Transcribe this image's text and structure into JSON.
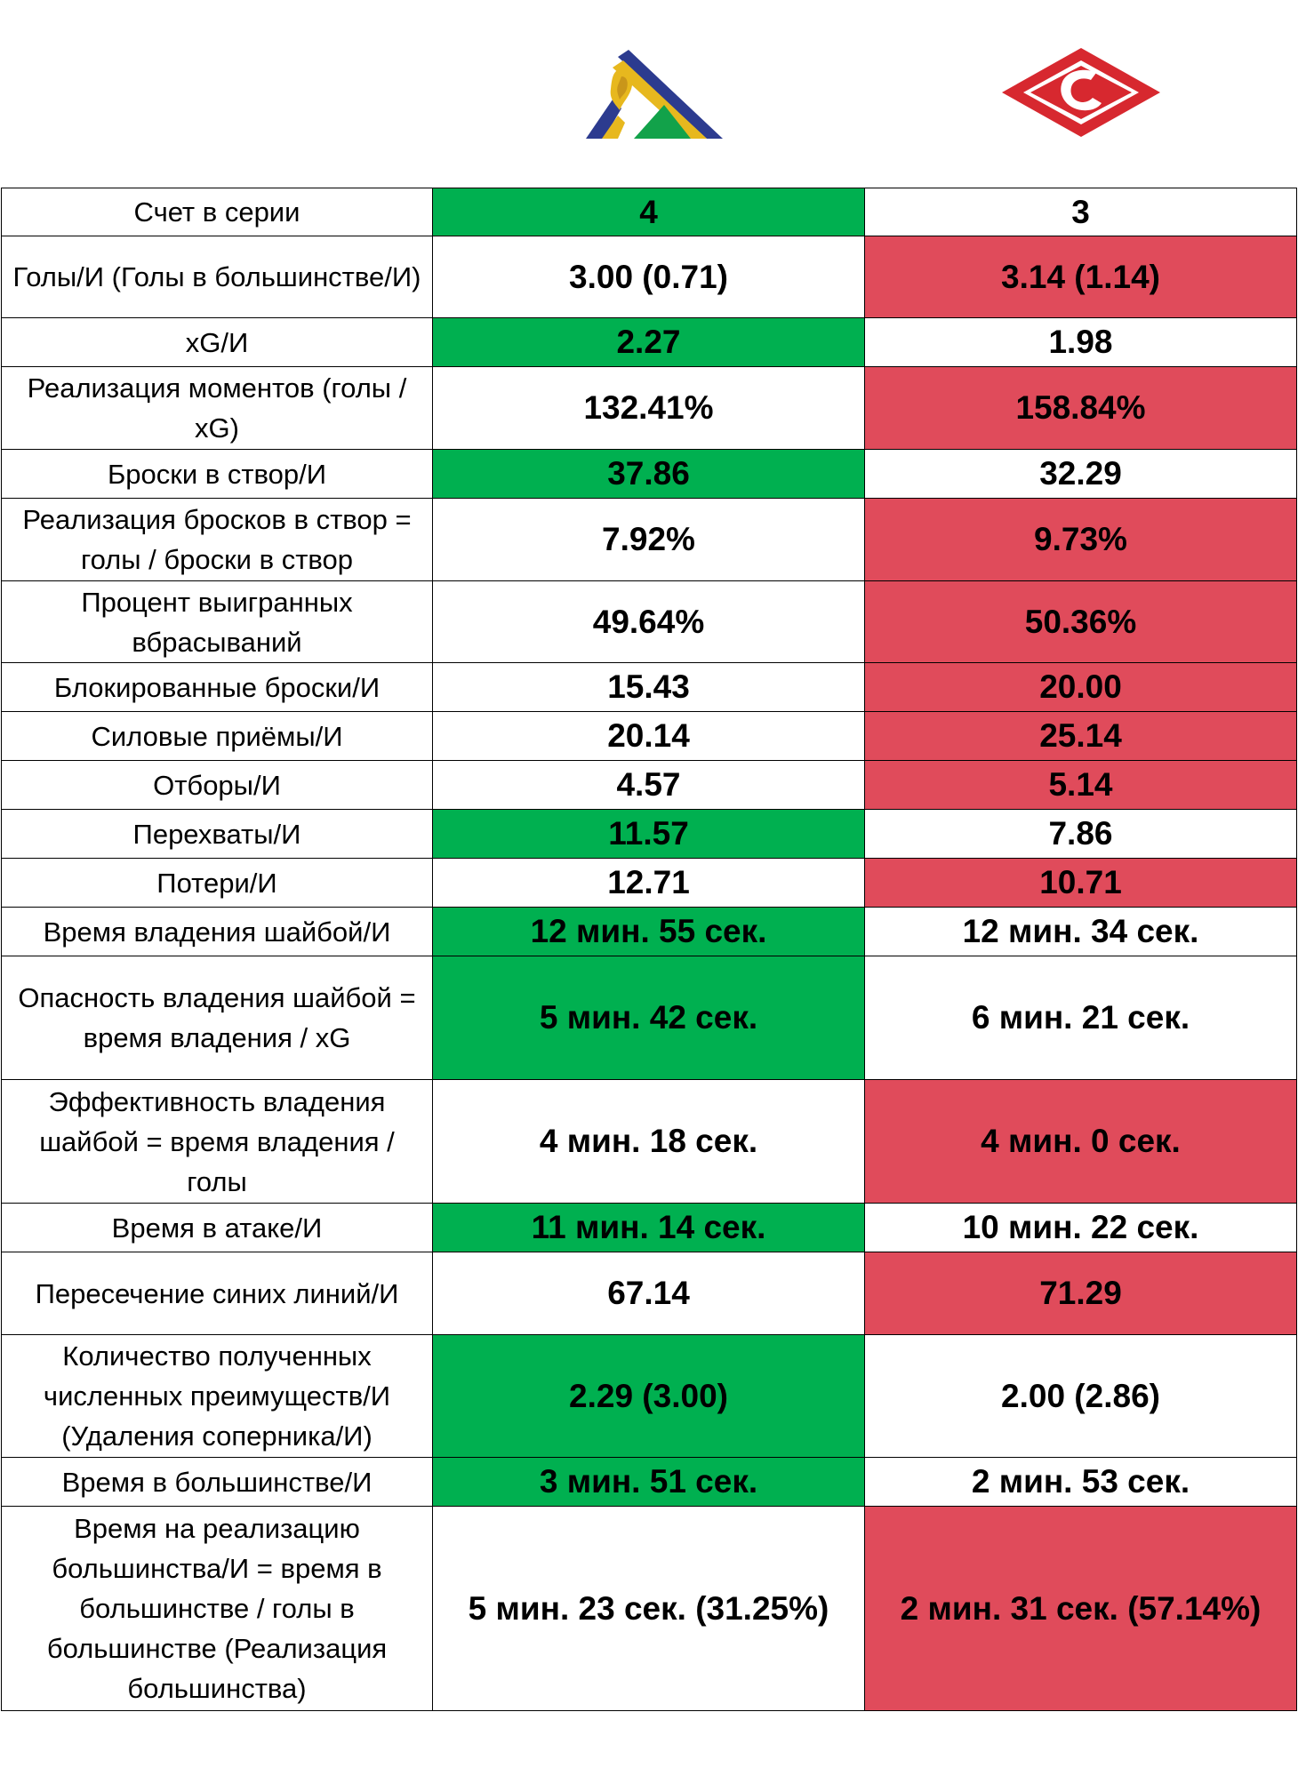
{
  "colors": {
    "better": "#00b050",
    "worse": "#e04b5b",
    "neutral": "#ffffff"
  },
  "teams": [
    {
      "logo": "salavat-yulaev-logo"
    },
    {
      "logo": "spartak-logo"
    }
  ],
  "rows": [
    {
      "label": "Счет в серии",
      "home": "4",
      "away": "3",
      "home_color": "green",
      "away_color": "white",
      "h": 54
    },
    {
      "label": "Голы/И (Голы в большинстве/И)",
      "home": "3.00 (0.71)",
      "away": "3.14 (1.14)",
      "home_color": "white",
      "away_color": "red",
      "h": 92
    },
    {
      "label": "xG/И",
      "home": "2.27",
      "away": "1.98",
      "home_color": "green",
      "away_color": "white",
      "h": 55
    },
    {
      "label": "Реализация моментов (голы / xG)",
      "home": "132.41%",
      "away": "158.84%",
      "home_color": "white",
      "away_color": "red",
      "h": 93
    },
    {
      "label": "Броски в створ/И",
      "home": "37.86",
      "away": "32.29",
      "home_color": "green",
      "away_color": "white",
      "h": 55
    },
    {
      "label": "Реализация бросков в створ = голы / броски в створ",
      "home": "7.92%",
      "away": "9.73%",
      "home_color": "white",
      "away_color": "red",
      "h": 93
    },
    {
      "label": "Процент выигранных вбрасываний",
      "home": "49.64%",
      "away": "50.36%",
      "home_color": "white",
      "away_color": "red",
      "h": 92
    },
    {
      "label": "Блокированные броски/И",
      "home": "15.43",
      "away": "20.00",
      "home_color": "white",
      "away_color": "red",
      "h": 55
    },
    {
      "label": "Силовые приёмы/И",
      "home": "20.14",
      "away": "25.14",
      "home_color": "white",
      "away_color": "red",
      "h": 55
    },
    {
      "label": "Отборы/И",
      "home": "4.57",
      "away": "5.14",
      "home_color": "white",
      "away_color": "red",
      "h": 55
    },
    {
      "label": "Перехваты/И",
      "home": "11.57",
      "away": "7.86",
      "home_color": "green",
      "away_color": "white",
      "h": 55
    },
    {
      "label": "Потери/И",
      "home": "12.71",
      "away": "10.71",
      "home_color": "white",
      "away_color": "red",
      "h": 55
    },
    {
      "label": "Время владения шайбой/И",
      "home": "12 мин. 55 сек.",
      "away": "12 мин. 34 сек.",
      "home_color": "green",
      "away_color": "white",
      "h": 55
    },
    {
      "label": "Опасность владения шайбой = время владения / xG",
      "home": "5 мин. 42 сек.",
      "away": "6 мин. 21 сек.",
      "home_color": "green",
      "away_color": "white",
      "h": 139
    },
    {
      "label": "Эффективность владения шайбой = время владения / голы",
      "home": "4 мин. 18 сек.",
      "away": "4 мин. 0 сек.",
      "home_color": "white",
      "away_color": "red",
      "h": 139
    },
    {
      "label": "Время в атаке/И",
      "home": "11 мин. 14 сек.",
      "away": "10 мин. 22 сек.",
      "home_color": "green",
      "away_color": "white",
      "h": 55
    },
    {
      "label": "Пересечение синих линий/И",
      "home": "67.14",
      "away": "71.29",
      "home_color": "white",
      "away_color": "red",
      "h": 93
    },
    {
      "label": "Количество полученных численных преимуществ/И (Удаления соперника/И)",
      "home": "2.29 (3.00)",
      "away": "2.00 (2.86)",
      "home_color": "green",
      "away_color": "white",
      "h": 138
    },
    {
      "label": "Время в большинстве/И",
      "home": "3 мин. 51 сек.",
      "away": "2 мин. 53 сек.",
      "home_color": "green",
      "away_color": "white",
      "h": 55
    },
    {
      "label": "Время на реализацию большинства/И = время в большинстве / голы в большинстве (Реализация большинства)",
      "home": "5 мин. 23 сек. (31.25%)",
      "away": "2 мин. 31 сек. (57.14%)",
      "home_color": "white",
      "away_color": "red",
      "h": 230
    }
  ]
}
